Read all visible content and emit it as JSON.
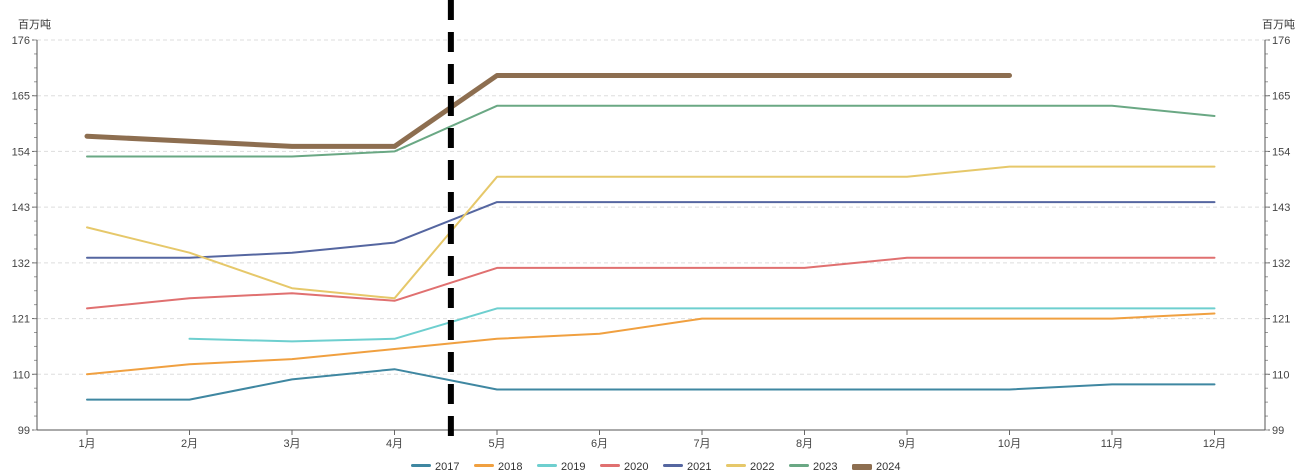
{
  "chart_data": {
    "type": "line",
    "unit_label": "百万吨",
    "categories": [
      "1月",
      "2月",
      "3月",
      "4月",
      "5月",
      "6月",
      "7月",
      "8月",
      "9月",
      "10月",
      "11月",
      "12月"
    ],
    "y_ticks": [
      "99",
      "110",
      "121",
      "132",
      "143",
      "154",
      "165",
      "176"
    ],
    "ylim": [
      99,
      176
    ],
    "grid": true,
    "legend_position": "bottom",
    "series": [
      {
        "name": "2017",
        "color": "#3f87a1",
        "width": 2,
        "values": [
          105,
          105,
          109,
          111,
          107,
          107,
          107,
          107,
          107,
          107,
          108,
          108
        ]
      },
      {
        "name": "2018",
        "color": "#f0a040",
        "width": 2,
        "values": [
          110,
          112,
          113,
          115,
          117,
          118,
          121,
          121,
          121,
          121,
          121,
          122
        ]
      },
      {
        "name": "2019",
        "color": "#6ecfcf",
        "width": 2,
        "values": [
          null,
          117,
          116.5,
          117,
          123,
          123,
          123,
          123,
          123,
          123,
          123,
          123
        ]
      },
      {
        "name": "2020",
        "color": "#e07070",
        "width": 2,
        "values": [
          123,
          125,
          126,
          124.5,
          131,
          131,
          131,
          131,
          133,
          133,
          133,
          133
        ]
      },
      {
        "name": "2021",
        "color": "#5566a0",
        "width": 2,
        "values": [
          133,
          133,
          134,
          136,
          144,
          144,
          144,
          144,
          144,
          144,
          144,
          144
        ]
      },
      {
        "name": "2022",
        "color": "#e6c86a",
        "width": 2,
        "values": [
          139,
          134,
          127,
          125,
          149,
          149,
          149,
          149,
          149,
          151,
          151,
          151
        ]
      },
      {
        "name": "2023",
        "color": "#6aa884",
        "width": 2,
        "values": [
          153,
          153,
          153,
          154,
          163,
          163,
          163,
          163,
          163,
          163,
          163,
          161
        ]
      },
      {
        "name": "2024",
        "color": "#8d6e50",
        "width": 5,
        "values": [
          157,
          156,
          155,
          155,
          169,
          169,
          169,
          169,
          169,
          169,
          null,
          null
        ]
      }
    ]
  }
}
